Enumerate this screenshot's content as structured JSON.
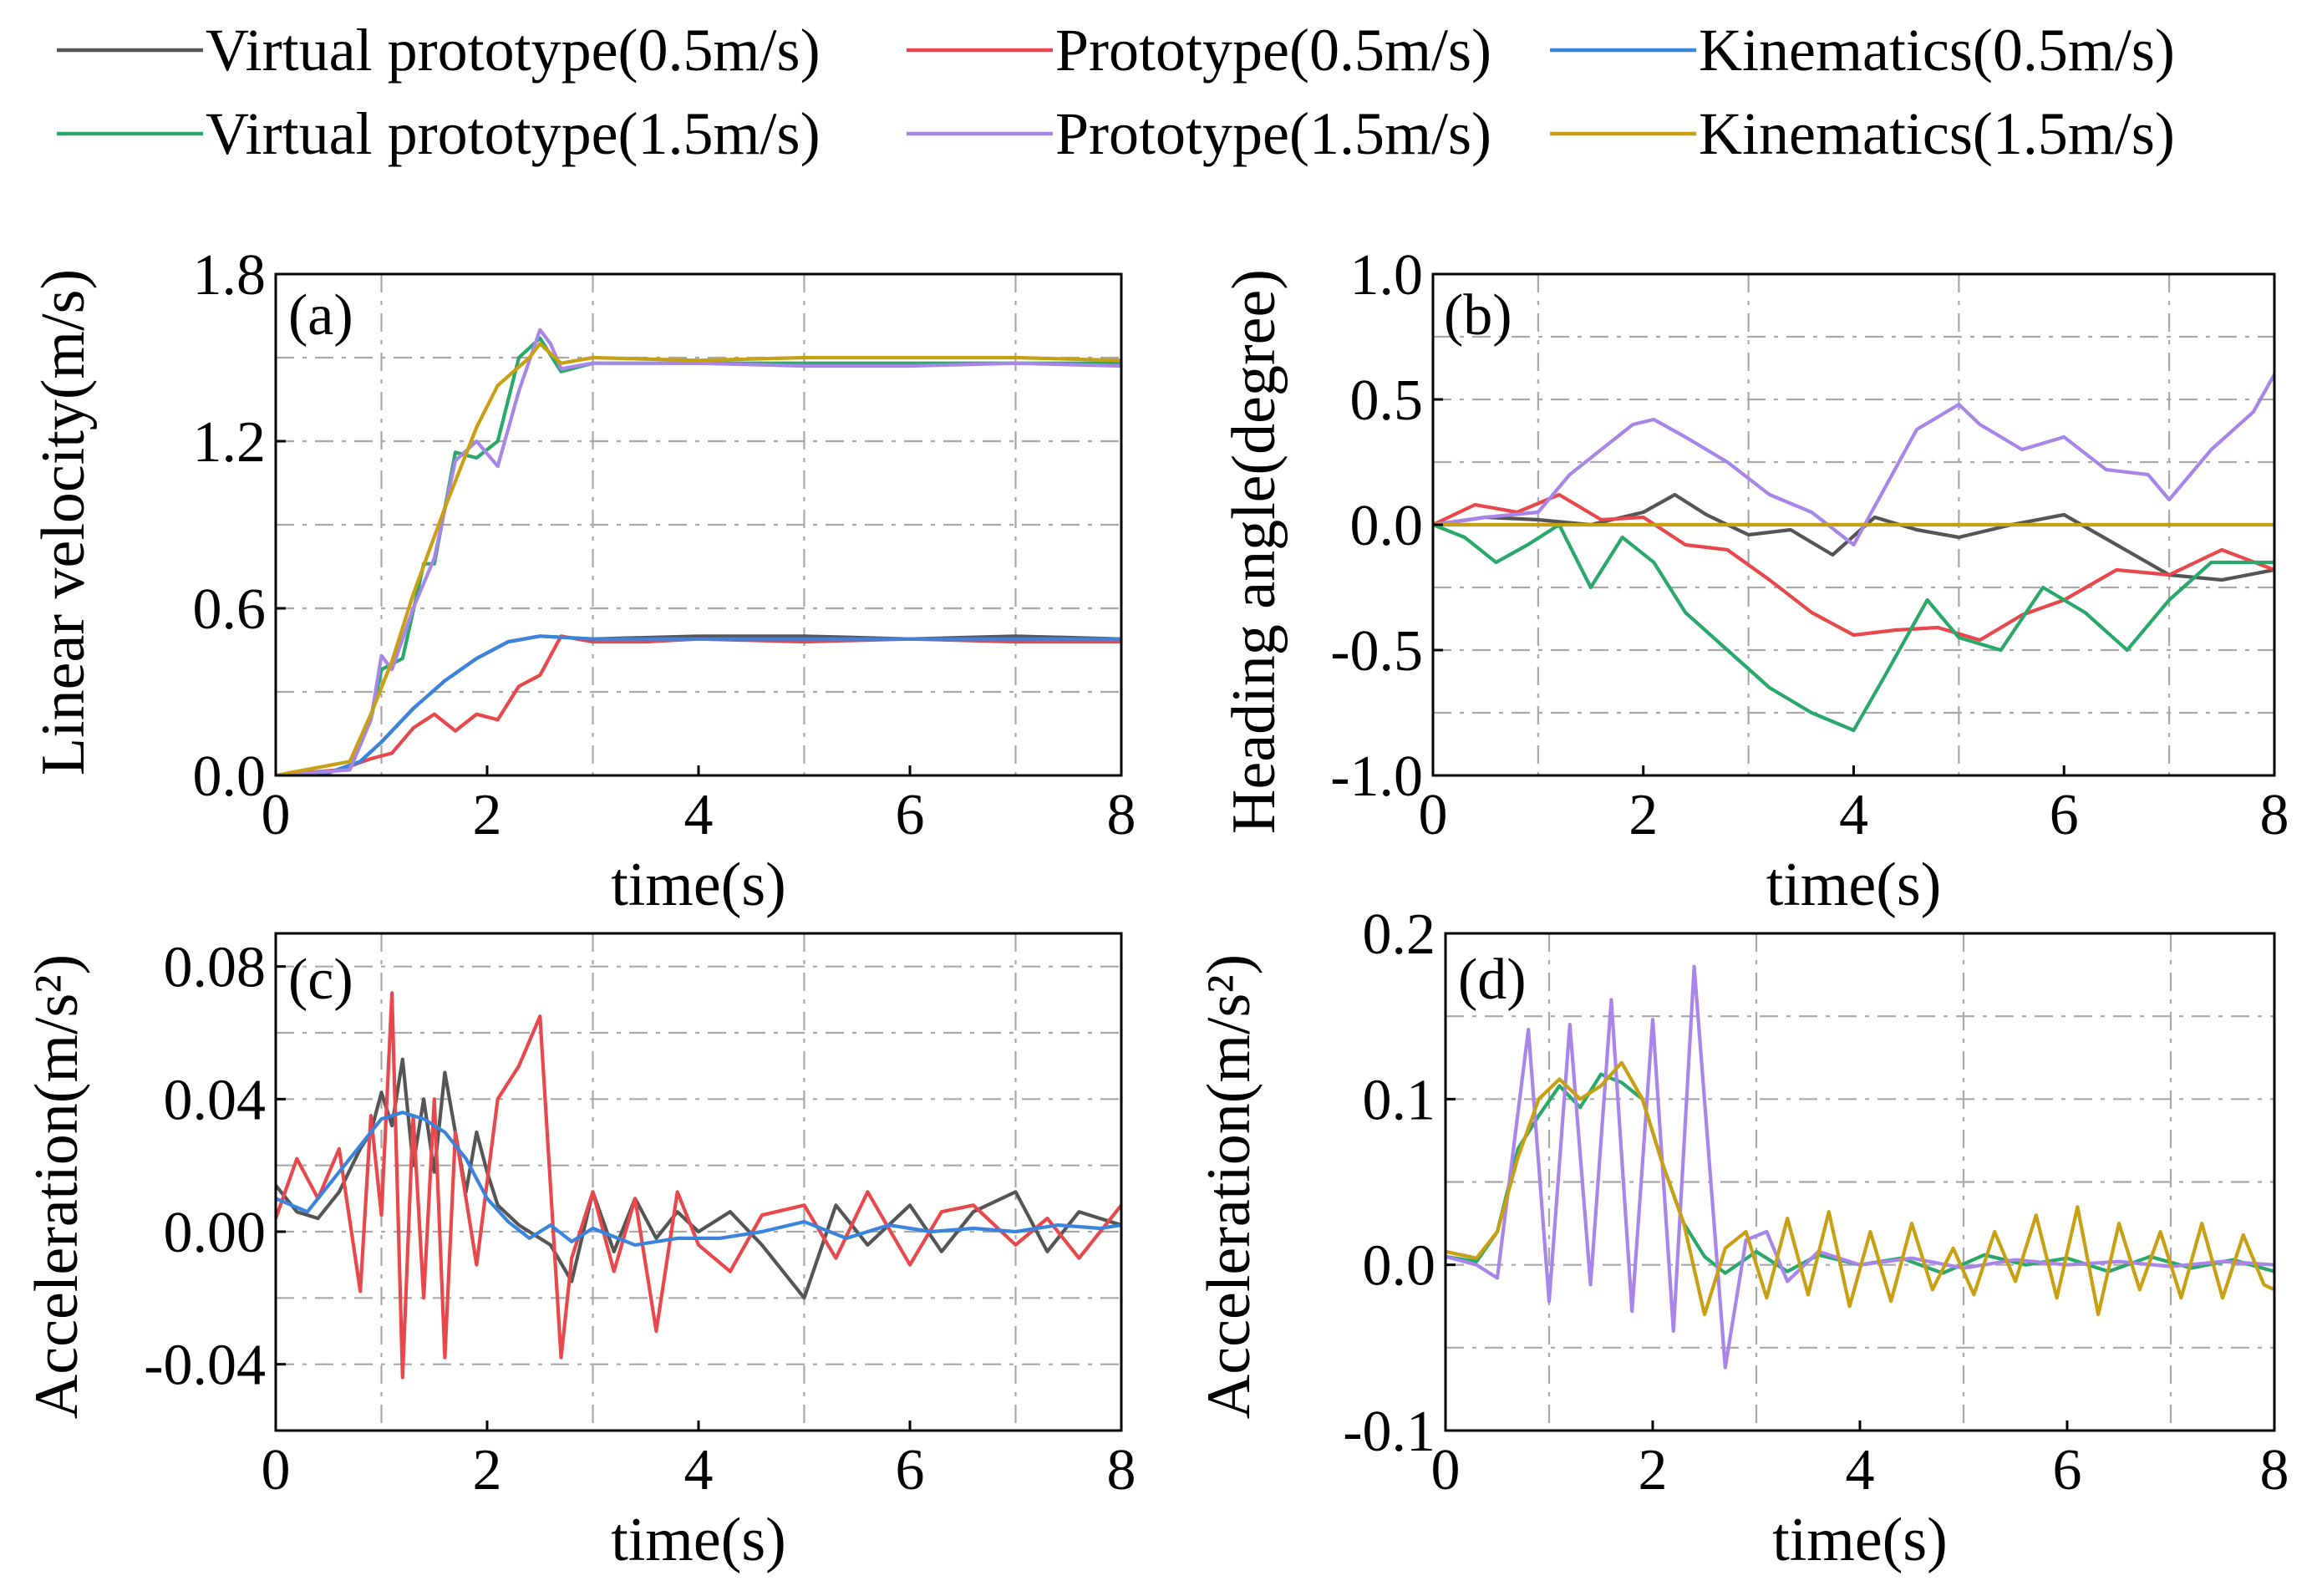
{
  "legend": [
    {
      "label": "Virtual prototype(0.5m/s)",
      "color": "#555555"
    },
    {
      "label": "Prototype(0.5m/s)",
      "color": "#e8474b"
    },
    {
      "label": "Kinematics(0.5m/s)",
      "color": "#3b84dd"
    },
    {
      "label": "Virtual prototype(1.5m/s)",
      "color": "#2aa86a"
    },
    {
      "label": "Prototype(1.5m/s)",
      "color": "#a885e8"
    },
    {
      "label": "Kinematics(1.5m/s)",
      "color": "#c8a013"
    }
  ],
  "chart_data": [
    {
      "panel": "(a)",
      "type": "line",
      "xlabel": "time(s)",
      "ylabel": "Linear velocity(m/s)",
      "xlim": [
        0,
        8
      ],
      "ylim": [
        0,
        1.8
      ],
      "xticks": [
        0,
        2,
        4,
        6,
        8
      ],
      "xtick_labels": [
        "0",
        "2",
        "4",
        "6",
        "8"
      ],
      "yticks": [
        0,
        0.6,
        1.2,
        1.8
      ],
      "ytick_labels": [
        "0.0",
        "0.6",
        "1.2",
        "1.8"
      ],
      "grid": true,
      "series": [
        {
          "name": "Virtual prototype(0.5m/s)",
          "color": "#555555",
          "x": [
            0,
            0.5,
            0.8,
            1.0,
            1.3,
            1.6,
            1.9,
            2.2,
            2.5,
            3,
            4,
            5,
            6,
            7,
            8
          ],
          "y": [
            0,
            0.01,
            0.05,
            0.12,
            0.24,
            0.34,
            0.42,
            0.48,
            0.5,
            0.49,
            0.5,
            0.5,
            0.49,
            0.5,
            0.49
          ]
        },
        {
          "name": "Prototype(0.5m/s)",
          "color": "#e8474b",
          "x": [
            0,
            0.6,
            0.9,
            1.1,
            1.3,
            1.5,
            1.7,
            1.9,
            2.1,
            2.3,
            2.5,
            2.7,
            3,
            3.5,
            4,
            5,
            6,
            7,
            8
          ],
          "y": [
            0,
            0.02,
            0.06,
            0.08,
            0.17,
            0.22,
            0.16,
            0.22,
            0.2,
            0.32,
            0.36,
            0.5,
            0.48,
            0.48,
            0.49,
            0.48,
            0.49,
            0.48,
            0.48
          ]
        },
        {
          "name": "Kinematics(0.5m/s)",
          "color": "#3b84dd",
          "x": [
            0,
            0.5,
            0.8,
            1.0,
            1.3,
            1.6,
            1.9,
            2.2,
            2.5,
            3,
            4,
            5,
            6,
            7,
            8
          ],
          "y": [
            0,
            0.01,
            0.05,
            0.12,
            0.24,
            0.34,
            0.42,
            0.48,
            0.5,
            0.49,
            0.49,
            0.49,
            0.49,
            0.49,
            0.49
          ]
        },
        {
          "name": "Virtual prototype(1.5m/s)",
          "color": "#2aa86a",
          "x": [
            0,
            0.7,
            0.9,
            1.0,
            1.2,
            1.4,
            1.5,
            1.7,
            1.9,
            2.1,
            2.3,
            2.5,
            2.7,
            3,
            4,
            5,
            6,
            7,
            8
          ],
          "y": [
            0,
            0.02,
            0.2,
            0.38,
            0.42,
            0.76,
            0.76,
            1.16,
            1.14,
            1.2,
            1.5,
            1.57,
            1.45,
            1.48,
            1.48,
            1.48,
            1.48,
            1.48,
            1.48
          ]
        },
        {
          "name": "Prototype(1.5m/s)",
          "color": "#a885e8",
          "x": [
            0,
            0.7,
            0.9,
            1.0,
            1.1,
            1.3,
            1.5,
            1.7,
            1.9,
            2.1,
            2.3,
            2.5,
            2.6,
            2.7,
            3,
            4,
            5,
            6,
            7,
            8
          ],
          "y": [
            0,
            0.02,
            0.2,
            0.43,
            0.38,
            0.6,
            0.78,
            1.13,
            1.2,
            1.11,
            1.38,
            1.6,
            1.55,
            1.46,
            1.48,
            1.48,
            1.47,
            1.47,
            1.48,
            1.47
          ]
        },
        {
          "name": "Kinematics(1.5m/s)",
          "color": "#c8a013",
          "x": [
            0,
            0.7,
            0.9,
            1.1,
            1.3,
            1.6,
            1.9,
            2.1,
            2.4,
            2.5,
            2.7,
            3,
            4,
            5,
            6,
            7,
            8
          ],
          "y": [
            0,
            0.05,
            0.22,
            0.41,
            0.65,
            0.96,
            1.25,
            1.4,
            1.5,
            1.55,
            1.48,
            1.5,
            1.49,
            1.5,
            1.5,
            1.5,
            1.49
          ]
        }
      ]
    },
    {
      "panel": "(b)",
      "type": "line",
      "xlabel": "time(s)",
      "ylabel": "Heading angle(degree)",
      "xlim": [
        0,
        8
      ],
      "ylim": [
        -1.0,
        1.0
      ],
      "xticks": [
        0,
        2,
        4,
        6,
        8
      ],
      "xtick_labels": [
        "0",
        "2",
        "4",
        "6",
        "8"
      ],
      "yticks": [
        -1.0,
        -0.5,
        0.0,
        0.5,
        1.0
      ],
      "ytick_labels": [
        "-1.0",
        "-0.5",
        "0.0",
        "0.5",
        "1.0"
      ],
      "grid": true,
      "series": [
        {
          "name": "Virtual prototype(0.5m/s)",
          "color": "#555555",
          "x": [
            0,
            0.5,
            1,
            1.5,
            2,
            2.3,
            2.6,
            3,
            3.4,
            3.8,
            4.2,
            4.6,
            5,
            5.5,
            6,
            6.5,
            7,
            7.5,
            8
          ],
          "y": [
            0,
            0.03,
            0.02,
            0.0,
            0.05,
            0.12,
            0.04,
            -0.04,
            -0.02,
            -0.12,
            0.03,
            -0.02,
            -0.05,
            0.0,
            0.04,
            -0.08,
            -0.2,
            -0.22,
            -0.18
          ]
        },
        {
          "name": "Prototype(0.5m/s)",
          "color": "#e8474b",
          "x": [
            0,
            0.4,
            0.8,
            1.2,
            1.6,
            2,
            2.4,
            2.8,
            3.2,
            3.6,
            4,
            4.4,
            4.8,
            5.2,
            5.6,
            6,
            6.5,
            7,
            7.5,
            8
          ],
          "y": [
            0,
            0.08,
            0.05,
            0.12,
            0.02,
            0.03,
            -0.08,
            -0.1,
            -0.22,
            -0.35,
            -0.44,
            -0.42,
            -0.41,
            -0.46,
            -0.36,
            -0.3,
            -0.18,
            -0.2,
            -0.1,
            -0.18
          ]
        },
        {
          "name": "Kinematics(0.5m/s)",
          "color": "#3b84dd",
          "x": [
            0,
            8
          ],
          "y": [
            0,
            0
          ]
        },
        {
          "name": "Virtual prototype(1.5m/s)",
          "color": "#2aa86a",
          "x": [
            0,
            0.3,
            0.6,
            0.9,
            1.2,
            1.5,
            1.8,
            2.1,
            2.4,
            2.8,
            3.2,
            3.6,
            4,
            4.3,
            4.7,
            5,
            5.4,
            5.8,
            6.2,
            6.6,
            7,
            7.4,
            8
          ],
          "y": [
            0,
            -0.05,
            -0.15,
            -0.08,
            0.0,
            -0.25,
            -0.05,
            -0.15,
            -0.35,
            -0.5,
            -0.65,
            -0.75,
            -0.82,
            -0.6,
            -0.3,
            -0.45,
            -0.5,
            -0.25,
            -0.35,
            -0.5,
            -0.3,
            -0.15,
            -0.15
          ]
        },
        {
          "name": "Prototype(1.5m/s)",
          "color": "#a885e8",
          "x": [
            0,
            0.5,
            1,
            1.3,
            1.6,
            1.9,
            2.1,
            2.4,
            2.8,
            3.2,
            3.6,
            4,
            4.3,
            4.6,
            5,
            5.2,
            5.6,
            6,
            6.4,
            6.8,
            7,
            7.4,
            7.8,
            8
          ],
          "y": [
            0,
            0.03,
            0.05,
            0.2,
            0.3,
            0.4,
            0.42,
            0.35,
            0.25,
            0.12,
            0.05,
            -0.08,
            0.15,
            0.38,
            0.48,
            0.4,
            0.3,
            0.35,
            0.22,
            0.2,
            0.1,
            0.3,
            0.45,
            0.6
          ]
        },
        {
          "name": "Kinematics(1.5m/s)",
          "color": "#c8a013",
          "x": [
            0,
            8
          ],
          "y": [
            0,
            0
          ]
        }
      ]
    },
    {
      "panel": "(c)",
      "type": "line",
      "xlabel": "time(s)",
      "ylabel": "Acceleration(m/s²)",
      "xlim": [
        0,
        8
      ],
      "ylim": [
        -0.06,
        0.09
      ],
      "xticks": [
        0,
        2,
        4,
        6,
        8
      ],
      "xtick_labels": [
        "0",
        "2",
        "4",
        "6",
        "8"
      ],
      "yticks": [
        -0.04,
        0.0,
        0.04,
        0.08
      ],
      "ytick_labels": [
        "-0.04",
        "0.00",
        "0.04",
        "0.08"
      ],
      "grid": true,
      "series": [
        {
          "name": "Virtual prototype(0.5m/s)",
          "color": "#555555",
          "x": [
            0,
            0.2,
            0.4,
            0.6,
            0.8,
            0.9,
            1.0,
            1.1,
            1.2,
            1.3,
            1.4,
            1.5,
            1.6,
            1.7,
            1.8,
            1.9,
            2.0,
            2.1,
            2.3,
            2.6,
            2.8,
            3.0,
            3.2,
            3.4,
            3.6,
            3.8,
            4.0,
            4.3,
            4.6,
            5.0,
            5.3,
            5.6,
            6.0,
            6.3,
            6.6,
            7.0,
            7.3,
            7.6,
            8
          ],
          "y": [
            0.014,
            0.006,
            0.004,
            0.012,
            0.025,
            0.03,
            0.042,
            0.032,
            0.052,
            0.02,
            0.04,
            0.018,
            0.048,
            0.03,
            0.012,
            0.03,
            0.018,
            0.008,
            0.002,
            -0.004,
            -0.015,
            0.012,
            -0.006,
            0.01,
            -0.002,
            0.006,
            0.0,
            0.006,
            -0.004,
            -0.02,
            0.008,
            -0.004,
            0.008,
            -0.006,
            0.006,
            0.012,
            -0.006,
            0.006,
            0.002
          ]
        },
        {
          "name": "Prototype(0.5m/s)",
          "color": "#e8474b",
          "x": [
            0,
            0.2,
            0.4,
            0.6,
            0.8,
            0.9,
            1.0,
            1.1,
            1.2,
            1.3,
            1.4,
            1.5,
            1.6,
            1.7,
            1.8,
            1.9,
            2.0,
            2.1,
            2.3,
            2.5,
            2.7,
            2.8,
            3.0,
            3.2,
            3.4,
            3.6,
            3.8,
            4.0,
            4.3,
            4.6,
            5.0,
            5.3,
            5.6,
            6.0,
            6.3,
            6.6,
            7.0,
            7.3,
            7.6,
            8
          ],
          "y": [
            0.004,
            0.022,
            0.01,
            0.025,
            -0.018,
            0.035,
            0.005,
            0.072,
            -0.044,
            0.035,
            -0.02,
            0.04,
            -0.038,
            0.03,
            0.01,
            -0.01,
            0.015,
            0.04,
            0.05,
            0.065,
            -0.038,
            -0.008,
            0.012,
            -0.012,
            0.01,
            -0.03,
            0.012,
            -0.004,
            -0.012,
            0.005,
            0.008,
            -0.008,
            0.012,
            -0.01,
            0.006,
            0.008,
            -0.004,
            0.004,
            -0.008,
            0.008
          ]
        },
        {
          "name": "Kinematics(0.5m/s)",
          "color": "#3b84dd",
          "x": [
            0,
            0.3,
            0.6,
            0.8,
            1.0,
            1.2,
            1.4,
            1.6,
            1.8,
            2.0,
            2.2,
            2.4,
            2.6,
            2.8,
            3.0,
            3.4,
            3.8,
            4.2,
            4.6,
            5.0,
            5.4,
            5.8,
            6.2,
            6.6,
            7.0,
            7.4,
            7.8,
            8
          ],
          "y": [
            0.01,
            0.006,
            0.018,
            0.026,
            0.034,
            0.036,
            0.034,
            0.03,
            0.022,
            0.01,
            0.003,
            -0.002,
            0.002,
            -0.003,
            0.001,
            -0.004,
            -0.002,
            -0.002,
            0.0,
            0.003,
            -0.002,
            0.002,
            0.0,
            0.001,
            0.0,
            0.002,
            0.001,
            0.002
          ]
        }
      ]
    },
    {
      "panel": "(d)",
      "type": "line",
      "xlabel": "time(s)",
      "ylabel": "Acceleration(m/s²)",
      "xlim": [
        0,
        8
      ],
      "ylim": [
        -0.1,
        0.2
      ],
      "xticks": [
        0,
        2,
        4,
        6,
        8
      ],
      "xtick_labels": [
        "0",
        "2",
        "4",
        "6",
        "8"
      ],
      "yticks": [
        -0.1,
        0.0,
        0.1,
        0.2
      ],
      "ytick_labels": [
        "-0.1",
        "0.0",
        "0.1",
        "0.2"
      ],
      "grid": true,
      "series": [
        {
          "name": "Virtual prototype(1.5m/s)",
          "color": "#2aa86a",
          "x": [
            0,
            0.3,
            0.5,
            0.7,
            0.9,
            1.1,
            1.3,
            1.5,
            1.7,
            1.9,
            2.1,
            2.3,
            2.5,
            2.7,
            3.0,
            3.3,
            3.6,
            4.0,
            4.4,
            4.8,
            5.2,
            5.6,
            6.0,
            6.4,
            6.8,
            7.2,
            7.6,
            8
          ],
          "y": [
            0.005,
            0.002,
            0.02,
            0.07,
            0.09,
            0.108,
            0.095,
            0.115,
            0.11,
            0.1,
            0.06,
            0.025,
            0.005,
            -0.005,
            0.008,
            -0.004,
            0.006,
            0.0,
            0.004,
            -0.005,
            0.006,
            0.0,
            0.004,
            -0.004,
            0.005,
            -0.002,
            0.003,
            -0.004
          ]
        },
        {
          "name": "Prototype(1.5m/s)",
          "color": "#a885e8",
          "x": [
            0,
            0.3,
            0.5,
            0.8,
            1.0,
            1.2,
            1.4,
            1.6,
            1.8,
            2.0,
            2.2,
            2.4,
            2.7,
            2.9,
            3.1,
            3.3,
            3.6,
            4.0,
            4.5,
            5.0,
            5.5,
            6.0,
            6.5,
            7.0,
            7.5,
            8
          ],
          "y": [
            0.005,
            0.0,
            -0.008,
            0.142,
            -0.022,
            0.145,
            -0.012,
            0.16,
            -0.028,
            0.148,
            -0.04,
            0.18,
            -0.062,
            0.015,
            0.02,
            -0.01,
            0.008,
            0.0,
            0.004,
            -0.002,
            0.003,
            0.0,
            0.002,
            -0.001,
            0.002,
            0.0
          ]
        },
        {
          "name": "Kinematics(1.5m/s)",
          "color": "#c8a013",
          "x": [
            0,
            0.3,
            0.5,
            0.7,
            0.9,
            1.1,
            1.3,
            1.5,
            1.7,
            1.9,
            2.1,
            2.3,
            2.5,
            2.7,
            2.9,
            3.1,
            3.3,
            3.5,
            3.7,
            3.9,
            4.1,
            4.3,
            4.5,
            4.7,
            4.9,
            5.1,
            5.3,
            5.5,
            5.7,
            5.9,
            6.1,
            6.3,
            6.5,
            6.7,
            6.9,
            7.1,
            7.3,
            7.5,
            7.7,
            7.9,
            8
          ],
          "y": [
            0.008,
            0.004,
            0.02,
            0.065,
            0.1,
            0.112,
            0.1,
            0.108,
            0.122,
            0.1,
            0.06,
            0.025,
            -0.03,
            0.01,
            0.02,
            -0.02,
            0.028,
            -0.018,
            0.032,
            -0.025,
            0.02,
            -0.022,
            0.025,
            -0.015,
            0.01,
            -0.018,
            0.02,
            -0.01,
            0.03,
            -0.02,
            0.035,
            -0.03,
            0.025,
            -0.015,
            0.02,
            -0.02,
            0.025,
            -0.02,
            0.018,
            -0.012,
            -0.015
          ]
        }
      ]
    }
  ]
}
